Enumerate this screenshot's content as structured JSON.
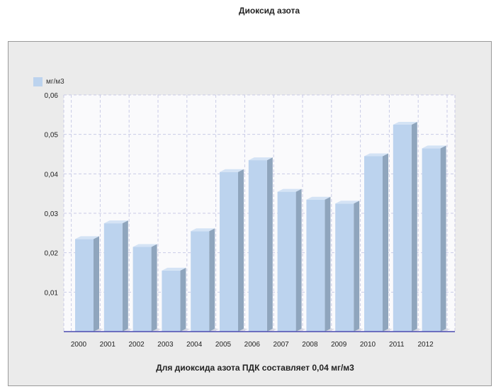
{
  "chart_data": {
    "type": "bar",
    "title": "Диоксид азота",
    "categories": [
      "2000",
      "2001",
      "2002",
      "2003",
      "2004",
      "2005",
      "2006",
      "2007",
      "2008",
      "2009",
      "2010",
      "2011",
      "2012"
    ],
    "series": [
      {
        "name": "мг/м3",
        "values": [
          0.024,
          0.028,
          0.022,
          0.016,
          0.026,
          0.041,
          0.044,
          0.036,
          0.034,
          0.033,
          0.045,
          0.053,
          0.047
        ]
      }
    ],
    "ylim": [
      0,
      0.06
    ],
    "yticks": [
      "0,06",
      "0,05",
      "0,04",
      "0,03",
      "0,02",
      "0,01"
    ],
    "ytick_values": [
      0.06,
      0.05,
      0.04,
      0.03,
      0.02,
      0.01
    ],
    "grid": true,
    "legend": "top-left",
    "colors": {
      "bar_front": "#bcd3ee",
      "bar_side": "#8fa5bd",
      "bar_top": "#d4e3f5",
      "grid": "#c9cbe6",
      "axis": "#4b4bb0"
    },
    "footnote": "Для диоксида азота ПДК составляет 0,04 мг/м3"
  }
}
